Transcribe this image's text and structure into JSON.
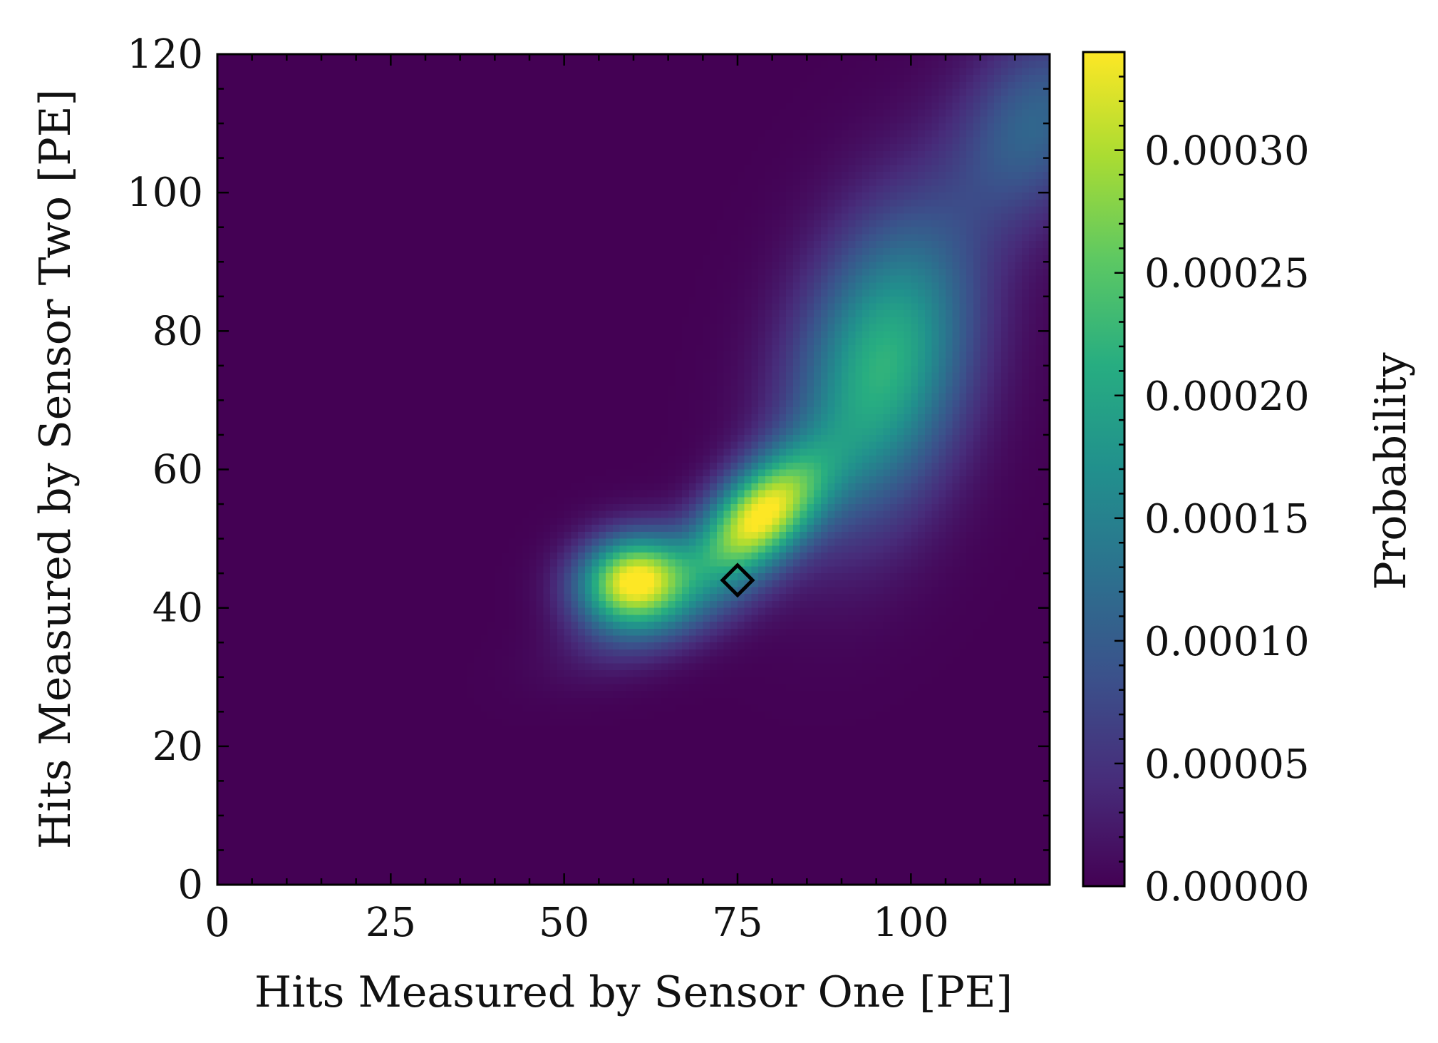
{
  "chart_data": {
    "type": "heatmap",
    "title": "",
    "xlabel": "Hits Measured by Sensor One [PE]",
    "ylabel": "Hits Measured by Sensor Two [PE]",
    "xlim": [
      0,
      120
    ],
    "ylim": [
      0,
      120
    ],
    "x_ticks": [
      0,
      25,
      50,
      75,
      100
    ],
    "y_ticks": [
      0,
      20,
      40,
      60,
      80,
      100,
      120
    ],
    "colormap": "viridis",
    "colorbar": {
      "label": "Probability",
      "range": [
        0,
        0.00034
      ],
      "ticks": [
        0,
        5e-05,
        0.0001,
        0.00015,
        0.0002,
        0.00025,
        0.0003
      ],
      "tick_labels": [
        "0.00000",
        "0.00005",
        "0.00010",
        "0.00015",
        "0.00020",
        "0.00025",
        "0.00030"
      ]
    },
    "grid": false,
    "density_components": [
      {
        "x": 60,
        "y": 44,
        "sx": 5.5,
        "sy": 4.5,
        "rho": 0.1,
        "peak": 0.00034
      },
      {
        "x": 78,
        "y": 53,
        "sx": 6.5,
        "sy": 6.5,
        "rho": 0.55,
        "peak": 0.00033
      },
      {
        "x": 96,
        "y": 75,
        "sx": 9,
        "sy": 15,
        "rho": 0.3,
        "peak": 0.00022
      },
      {
        "x": 118,
        "y": 110,
        "sx": 8,
        "sy": 10,
        "rho": 0.3,
        "peak": 0.00011
      },
      {
        "x": 64,
        "y": 38,
        "sx": 9,
        "sy": 5,
        "rho": 0.55,
        "peak": 6e-05
      }
    ],
    "marker": {
      "x": 75,
      "y": 44,
      "shape": "diamond",
      "color": "#000000"
    }
  }
}
